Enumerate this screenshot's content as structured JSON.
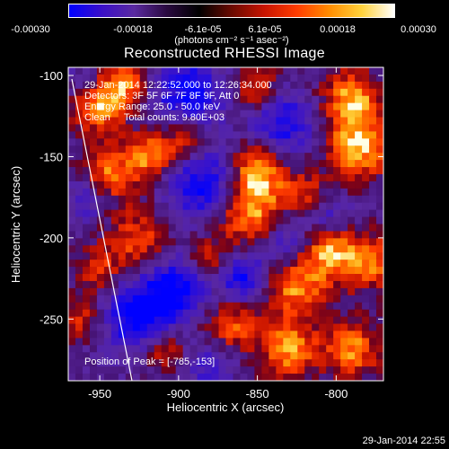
{
  "colorbar": {
    "ticks": [
      "-0.00030",
      "-0.00018",
      "-6.1e-05",
      "6.1e-05",
      "0.00018",
      "0.00030"
    ],
    "units": "(photons cm⁻² s⁻¹ asec⁻²)",
    "colors": [
      "#0000ff",
      "#3a0fc8",
      "#5a2aa0",
      "#2a0a40",
      "#000000",
      "#6a0a00",
      "#c81400",
      "#ff3c00",
      "#ff8c00",
      "#ffd23c",
      "#ffffff"
    ]
  },
  "annotations": {
    "time_range": "29-Jan-2014 12:22:52.000 to 12:26:34.000",
    "detectors": "Detectors: 3F 5F 6F 7F 8F 9F, Att 0",
    "energy": "Energy Range: 25.0 - 50.0 keV",
    "clean": "Clean     Total counts: 9.80E+03"
  },
  "peak_label": "Position of Peak = [-785,-153]",
  "footer_timestamp": "29-Jan-2014 22:55",
  "chart_data": {
    "type": "heatmap",
    "title": "Reconstructed RHESSI Image",
    "xlabel": "Heliocentric X (arcsec)",
    "ylabel": "Heliocentric Y (arcsec)",
    "xlim": [
      -970,
      -770
    ],
    "ylim": [
      -288,
      -95
    ],
    "xticks": [
      -950,
      -900,
      -850,
      -800
    ],
    "yticks": [
      -100,
      -150,
      -200,
      -250
    ],
    "zlim": [
      -0.0003,
      0.0003
    ],
    "peak": [
      -785,
      -153
    ],
    "grid": false
  }
}
